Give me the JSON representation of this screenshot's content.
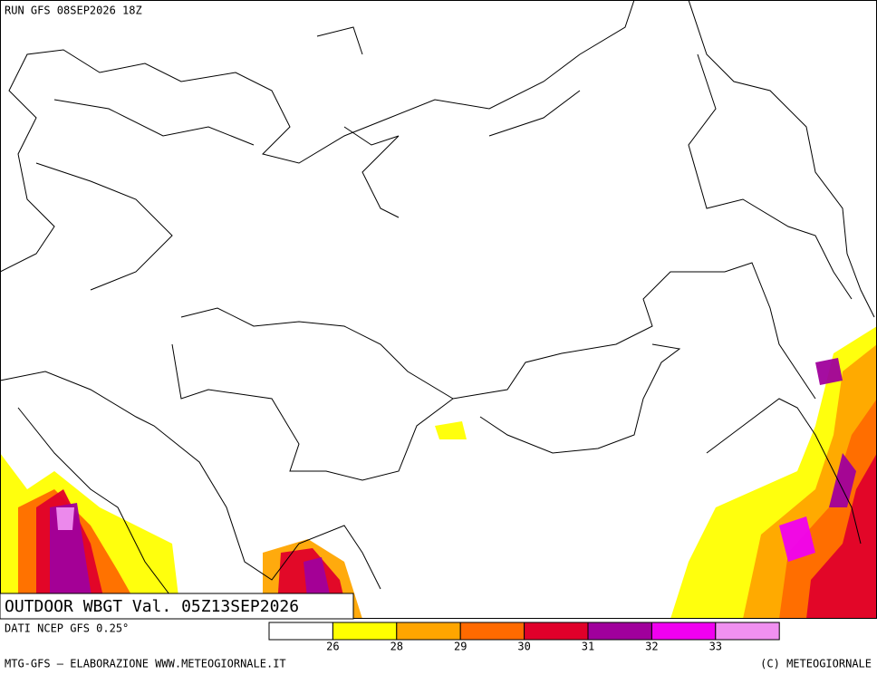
{
  "header": {
    "run": "RUN GFS 08SEP2026 18Z"
  },
  "map": {
    "title": "OUTDOOR WBGT Val. 05Z13SEP2026"
  },
  "source": "DATI NCEP GFS 0.25°",
  "legend": {
    "colors": [
      "#ffffff",
      "#ffff00",
      "#ffa500",
      "#ff6a00",
      "#e0002a",
      "#a0009c",
      "#f000f0",
      "#f090f0"
    ],
    "ticks": [
      26,
      28,
      29,
      30,
      31,
      32,
      33
    ]
  },
  "footer": {
    "left": "MTG-GFS — ELABORAZIONE WWW.METEOGIORNALE.IT",
    "right": "(C) METEOGIORNALE"
  }
}
